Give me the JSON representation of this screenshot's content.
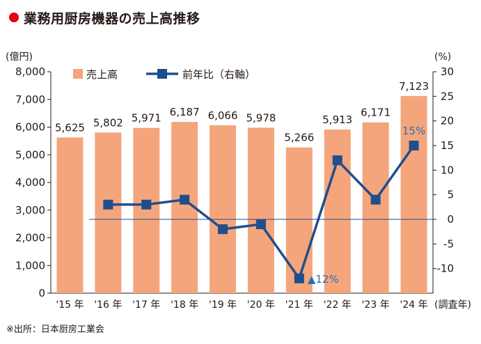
{
  "title": "業務用厨房機器の売上高推移",
  "source": "※出所：日本厨房工業会",
  "chart_data": {
    "type": "bar",
    "categories": [
      "'15 年",
      "'16 年",
      "'17 年",
      "'18 年",
      "'19 年",
      "'20 年",
      "'21 年",
      "'22 年",
      "'23 年",
      "'24 年"
    ],
    "x_suffix": "(調査年)",
    "series": [
      {
        "name": "売上高",
        "type": "bar",
        "axis": "left",
        "values": [
          5625,
          5802,
          5971,
          6187,
          6066,
          5978,
          5266,
          5913,
          6171,
          7123
        ],
        "labels": [
          "5,625",
          "5,802",
          "5,971",
          "6,187",
          "6,066",
          "5,978",
          "5,266",
          "5,913",
          "6,171",
          "7,123"
        ]
      },
      {
        "name": "前年比（右軸）",
        "type": "line",
        "axis": "right",
        "values": [
          null,
          3,
          3,
          4,
          -2,
          -1,
          -12,
          12,
          4,
          15
        ]
      }
    ],
    "y_left": {
      "unit": "(億円)",
      "ylim": [
        0,
        8000
      ],
      "ticks": [
        0,
        1000,
        2000,
        3000,
        4000,
        5000,
        6000,
        7000,
        8000
      ],
      "tick_labels": [
        "0",
        "1,000",
        "2,000",
        "3,000",
        "4,000",
        "5,000",
        "6,000",
        "7,000",
        "8,000"
      ]
    },
    "y_right": {
      "unit": "(%)",
      "ylim": [
        -15,
        30
      ],
      "ticks": [
        -10,
        -5,
        0,
        5,
        10,
        15,
        20,
        25,
        30
      ],
      "tick_labels": [
        "-10",
        "-5",
        "0",
        "5",
        "10",
        "15",
        "20",
        "25",
        "30"
      ]
    },
    "annotations": [
      {
        "text": "▲12%",
        "category": "'21 年"
      },
      {
        "text": "15%",
        "category": "'24 年"
      }
    ],
    "legend_position": "top-left",
    "colors": {
      "bar": "#f4a57c",
      "line": "#1f4e8c",
      "annotation": "#2b6cb8",
      "title_dot": "#e60012"
    }
  }
}
